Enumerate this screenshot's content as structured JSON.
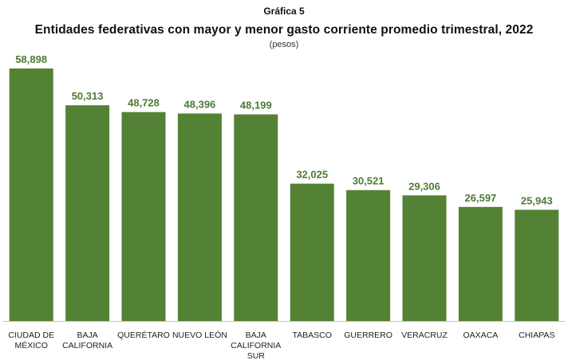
{
  "header": {
    "chart_number": "Gráfica 5",
    "title": "Entidades federativas con mayor y menor gasto corriente promedio trimestral, 2022",
    "subtitle": "(pesos)"
  },
  "colors": {
    "bar": "#548235",
    "value_label": "#4e7a34",
    "baseline": "#bfbfbf"
  },
  "chart_data": {
    "type": "bar",
    "title": "Entidades federativas con mayor y menor gasto corriente promedio trimestral, 2022",
    "subtitle": "(pesos)",
    "categories": [
      "CIUDAD DE MÉXICO",
      "BAJA CALIFORNIA",
      "QUERÉTARO",
      "NUEVO LEÓN",
      "BAJA CALIFORNIA SUR",
      "TABASCO",
      "GUERRERO",
      "VERACRUZ",
      "OAXACA",
      "CHIAPAS"
    ],
    "category_lines": [
      [
        "CIUDAD DE",
        "MÉXICO"
      ],
      [
        "BAJA",
        "CALIFORNIA"
      ],
      [
        "QUERÉTARO"
      ],
      [
        "NUEVO LEÓN"
      ],
      [
        "BAJA",
        "CALIFORNIA",
        "SUR"
      ],
      [
        "TABASCO"
      ],
      [
        "GUERRERO"
      ],
      [
        "VERACRUZ"
      ],
      [
        "OAXACA"
      ],
      [
        "CHIAPAS"
      ]
    ],
    "values": [
      58898,
      50313,
      48728,
      48396,
      48199,
      32025,
      30521,
      29306,
      26597,
      25943
    ],
    "data_labels": [
      "58,898",
      "50,313",
      "48,728",
      "48,396",
      "48,199",
      "32,025",
      "30,521",
      "29,306",
      "26,597",
      "25,943"
    ],
    "xlabel": "",
    "ylabel": "",
    "ylim": [
      0,
      60000
    ],
    "grid": false,
    "legend": "none"
  }
}
